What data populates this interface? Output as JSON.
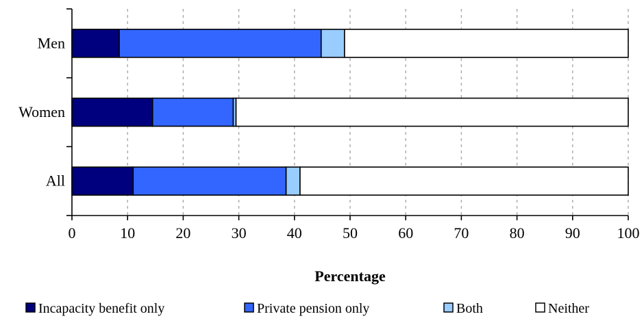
{
  "chart_data": {
    "type": "bar",
    "orientation": "horizontal",
    "stacked": true,
    "categories": [
      "Men",
      "Women",
      "All"
    ],
    "series": [
      {
        "name": "Incapacity benefit only",
        "color": "#00007f",
        "values": [
          8.5,
          14.5,
          11
        ]
      },
      {
        "name": "Private pension only",
        "color": "#3366ff",
        "values": [
          36.3,
          14.5,
          27.5
        ]
      },
      {
        "name": "Both",
        "color": "#99ccff",
        "values": [
          4.2,
          0.5,
          2.5
        ]
      },
      {
        "name": "Neither",
        "color": "#ffffff",
        "values": [
          51,
          70.5,
          59
        ]
      }
    ],
    "xlabel": "Percentage",
    "ylabel": "",
    "xlim": [
      0,
      100
    ],
    "xticks": [
      0,
      10,
      20,
      30,
      40,
      50,
      60,
      70,
      80,
      90,
      100
    ],
    "grid": "vertical dashed",
    "legend": "bottom"
  }
}
